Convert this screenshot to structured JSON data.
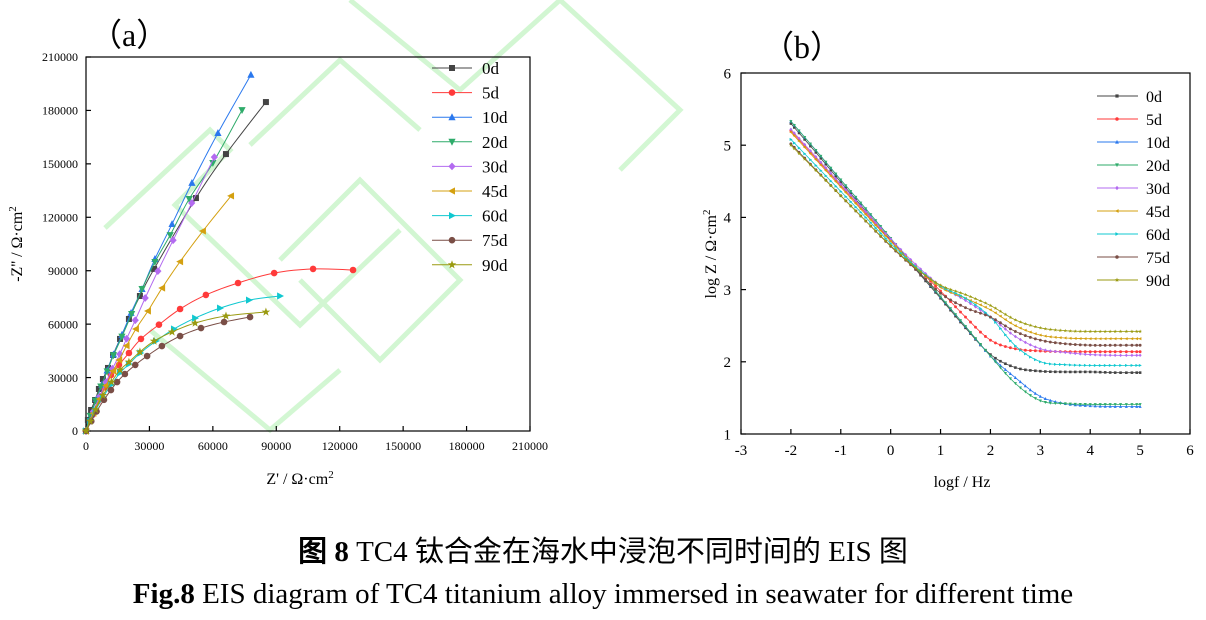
{
  "chart_data": [
    {
      "panel_label": "（a）",
      "type": "line",
      "xlabel": "Z' / Ω·cm",
      "xlabel_sup": "2",
      "ylabel": "-Z'' / Ω·cm",
      "ylabel_sup": "2",
      "xlim": [
        0,
        210000
      ],
      "ylim": [
        0,
        210000
      ],
      "xticks": [
        0,
        30000,
        60000,
        90000,
        120000,
        150000,
        180000,
        210000
      ],
      "yticks": [
        0,
        30000,
        60000,
        90000,
        120000,
        150000,
        180000,
        210000
      ],
      "grid": false,
      "legend_position": "top-right",
      "series": [
        {
          "name": "0d",
          "color": "#444444",
          "marker": "square",
          "points": [
            [
              0,
              0
            ],
            [
              900,
              6200
            ],
            [
              2400,
              11800
            ],
            [
              4300,
              17400
            ],
            [
              6100,
              23600
            ],
            [
              8000,
              29200
            ],
            [
              10400,
              35400
            ],
            [
              12800,
              42700
            ],
            [
              16100,
              51700
            ],
            [
              20300,
              62900
            ],
            [
              25500,
              75800
            ],
            [
              32200,
              91000
            ],
            [
              52000,
              130800
            ],
            [
              66200,
              155500
            ],
            [
              85100,
              184700
            ]
          ]
        },
        {
          "name": "5d",
          "color": "#ff3a3a",
          "marker": "circle",
          "points": [
            [
              0,
              0
            ],
            [
              3000,
              9000
            ],
            [
              5500,
              16500
            ],
            [
              8500,
              24500
            ],
            [
              11800,
              31400
            ],
            [
              15600,
              37100
            ],
            [
              20300,
              43800
            ],
            [
              26000,
              51700
            ],
            [
              34500,
              59700
            ],
            [
              44500,
              68500
            ],
            [
              56700,
              76400
            ],
            [
              71900,
              83100
            ],
            [
              89000,
              88700
            ],
            [
              107400,
              91000
            ],
            [
              126300,
              90400
            ]
          ]
        },
        {
          "name": "10d",
          "color": "#2a78ee",
          "marker": "triangle-up",
          "points": [
            [
              0,
              0
            ],
            [
              2500,
              9500
            ],
            [
              5000,
              18000
            ],
            [
              7500,
              26000
            ],
            [
              10000,
              34000
            ],
            [
              13000,
              43000
            ],
            [
              17000,
              54000
            ],
            [
              21300,
              66300
            ],
            [
              26500,
              79700
            ],
            [
              32600,
              96600
            ],
            [
              40700,
              116200
            ],
            [
              50100,
              139300
            ],
            [
              62400,
              167300
            ],
            [
              78000,
              200000
            ]
          ]
        },
        {
          "name": "20d",
          "color": "#2eab6a",
          "marker": "triangle-down",
          "points": [
            [
              0,
              0
            ],
            [
              2000,
              8500
            ],
            [
              4500,
              17000
            ],
            [
              7000,
              25000
            ],
            [
              10000,
              33500
            ],
            [
              13000,
              42500
            ],
            [
              17000,
              53000
            ],
            [
              21600,
              65700
            ],
            [
              26500,
              79700
            ],
            [
              32600,
              94900
            ],
            [
              39800,
              110000
            ],
            [
              48800,
              130300
            ],
            [
              60000,
              150500
            ],
            [
              73800,
              180200
            ]
          ]
        },
        {
          "name": "30d",
          "color": "#b36bf0",
          "marker": "diamond",
          "points": [
            [
              0,
              0
            ],
            [
              3500,
              11000
            ],
            [
              6500,
              19500
            ],
            [
              9500,
              27500
            ],
            [
              12500,
              35000
            ],
            [
              16000,
              43200
            ],
            [
              19200,
              51800
            ],
            [
              23300,
              62200
            ],
            [
              28000,
              74700
            ],
            [
              34000,
              89800
            ],
            [
              41200,
              107100
            ],
            [
              50000,
              128000
            ],
            [
              60700,
              153800
            ]
          ]
        },
        {
          "name": "45d",
          "color": "#d4a010",
          "marker": "triangle-left",
          "points": [
            [
              0,
              0
            ],
            [
              3500,
              10000
            ],
            [
              6500,
              18000
            ],
            [
              9500,
              25500
            ],
            [
              12900,
              33700
            ],
            [
              15700,
              39900
            ],
            [
              19200,
              47900
            ],
            [
              23600,
              57300
            ],
            [
              29300,
              67400
            ],
            [
              36000,
              80300
            ],
            [
              44500,
              95100
            ],
            [
              55300,
              112300
            ],
            [
              68600,
              132000
            ]
          ]
        },
        {
          "name": "60d",
          "color": "#10c8d0",
          "marker": "triangle-right",
          "points": [
            [
              0,
              0
            ],
            [
              2000,
              5500
            ],
            [
              4500,
              11500
            ],
            [
              8000,
              19000
            ],
            [
              12000,
              26000
            ],
            [
              16100,
              32600
            ],
            [
              20300,
              37600
            ],
            [
              25700,
              43800
            ],
            [
              33100,
              50500
            ],
            [
              41600,
              57300
            ],
            [
              51600,
              63400
            ],
            [
              63400,
              69000
            ],
            [
              77100,
              73500
            ],
            [
              91800,
              75800
            ]
          ]
        },
        {
          "name": "75d",
          "color": "#7a4e46",
          "marker": "circle",
          "points": [
            [
              0,
              0
            ],
            [
              2500,
              5500
            ],
            [
              5000,
              11000
            ],
            [
              8500,
              17500
            ],
            [
              11800,
              23000
            ],
            [
              14700,
              27500
            ],
            [
              18400,
              32000
            ],
            [
              23300,
              37100
            ],
            [
              28900,
              42100
            ],
            [
              35900,
              47700
            ],
            [
              44500,
              53300
            ],
            [
              54400,
              57800
            ],
            [
              65300,
              61200
            ],
            [
              77600,
              64000
            ]
          ]
        },
        {
          "name": "90d",
          "color": "#9a9a10",
          "marker": "star",
          "points": [
            [
              0,
              0
            ],
            [
              2000,
              5500
            ],
            [
              4500,
              12000
            ],
            [
              8000,
              20000
            ],
            [
              12000,
              27500
            ],
            [
              16100,
              34300
            ],
            [
              20300,
              38700
            ],
            [
              25500,
              44400
            ],
            [
              32200,
              50500
            ],
            [
              40700,
              55600
            ],
            [
              51600,
              60600
            ],
            [
              66200,
              64600
            ],
            [
              85100,
              66800
            ]
          ]
        }
      ]
    },
    {
      "panel_label": "（b）",
      "type": "line",
      "xlabel": "logf / Hz",
      "ylabel": "log Z / Ω·cm",
      "ylabel_sup": "2",
      "xlim": [
        -3,
        6
      ],
      "ylim": [
        1,
        6
      ],
      "xticks": [
        -3,
        -2,
        -1,
        0,
        1,
        2,
        3,
        4,
        5,
        6
      ],
      "yticks": [
        1,
        2,
        3,
        4,
        5,
        6
      ],
      "grid": false,
      "legend_position": "top-right",
      "x": [
        -2,
        -1.5,
        -1,
        -0.5,
        0,
        0.5,
        1,
        1.5,
        2,
        2.5,
        3,
        3.5,
        4,
        4.5,
        5
      ],
      "series": [
        {
          "name": "0d",
          "color": "#444444",
          "marker": "square",
          "values": [
            5.3,
            4.9,
            4.49,
            4.09,
            3.69,
            3.28,
            2.88,
            2.47,
            2.1,
            1.92,
            1.87,
            1.86,
            1.86,
            1.85,
            1.85
          ]
        },
        {
          "name": "5d",
          "color": "#ff3a3a",
          "marker": "circle",
          "values": [
            5.2,
            4.82,
            4.44,
            4.06,
            3.68,
            3.32,
            2.98,
            2.62,
            2.3,
            2.18,
            2.15,
            2.14,
            2.14,
            2.14,
            2.14
          ]
        },
        {
          "name": "10d",
          "color": "#2a78ee",
          "marker": "triangle-up",
          "values": [
            5.33,
            4.93,
            4.52,
            4.12,
            3.71,
            3.3,
            2.9,
            2.49,
            2.08,
            1.78,
            1.52,
            1.42,
            1.39,
            1.38,
            1.38
          ]
        },
        {
          "name": "20d",
          "color": "#2eab6a",
          "marker": "triangle-down",
          "values": [
            5.33,
            4.93,
            4.52,
            4.12,
            3.71,
            3.3,
            2.9,
            2.49,
            2.08,
            1.7,
            1.46,
            1.42,
            1.41,
            1.41,
            1.41
          ]
        },
        {
          "name": "30d",
          "color": "#b36bf0",
          "marker": "diamond",
          "values": [
            5.22,
            4.84,
            4.46,
            4.08,
            3.7,
            3.35,
            3.05,
            2.85,
            2.62,
            2.35,
            2.18,
            2.13,
            2.1,
            2.09,
            2.09
          ]
        },
        {
          "name": "45d",
          "color": "#d4a010",
          "marker": "triangle-left",
          "values": [
            5.18,
            4.8,
            4.42,
            4.04,
            3.67,
            3.32,
            3.03,
            2.88,
            2.72,
            2.5,
            2.37,
            2.33,
            2.32,
            2.32,
            2.32
          ]
        },
        {
          "name": "60d",
          "color": "#10c8d0",
          "marker": "triangle-right",
          "values": [
            5.08,
            4.72,
            4.36,
            4.0,
            3.64,
            3.32,
            3.05,
            2.88,
            2.62,
            2.22,
            2.0,
            1.96,
            1.95,
            1.95,
            1.95
          ]
        },
        {
          "name": "75d",
          "color": "#7a4e46",
          "marker": "circle",
          "values": [
            5.02,
            4.66,
            4.3,
            3.95,
            3.6,
            3.28,
            2.95,
            2.75,
            2.62,
            2.42,
            2.3,
            2.25,
            2.23,
            2.23,
            2.23
          ]
        },
        {
          "name": "90d",
          "color": "#9a9a10",
          "marker": "star",
          "values": [
            5.0,
            4.65,
            4.3,
            3.95,
            3.61,
            3.3,
            3.06,
            2.93,
            2.78,
            2.58,
            2.47,
            2.43,
            2.42,
            2.42,
            2.42
          ]
        }
      ]
    }
  ],
  "caption": {
    "cn_prefix": "图 8",
    "cn_text": " TC4 钛合金在海水中浸泡不同时间的 EIS 图",
    "en_prefix": "Fig.8",
    "en_text": " EIS diagram of TC4 titanium alloy immersed in seawater for different time"
  }
}
